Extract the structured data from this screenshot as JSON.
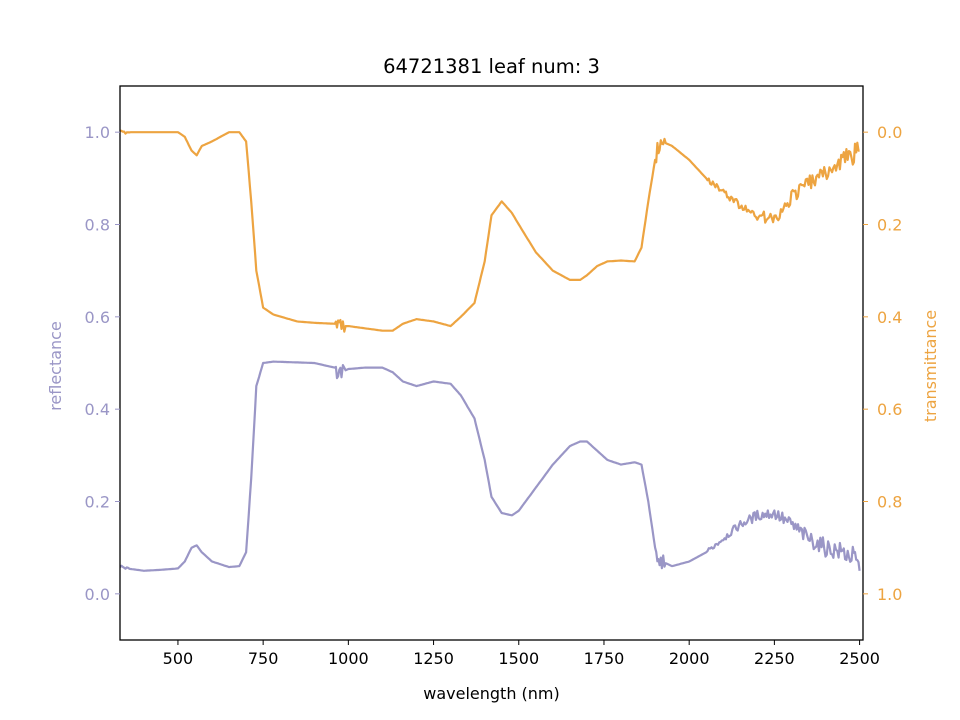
{
  "chart_data": {
    "type": "line",
    "title": "64721381 leaf num: 3",
    "xlabel": "wavelength (nm)",
    "xlim": [
      330,
      2510
    ],
    "x_ticks": [
      500,
      750,
      1000,
      1250,
      1500,
      1750,
      2000,
      2250,
      2500
    ],
    "y_left": {
      "label": "reflectance",
      "lim": [
        -0.1,
        1.1
      ],
      "ticks": [
        0.0,
        0.2,
        0.4,
        0.6,
        0.8,
        1.0
      ],
      "color": "#9a96c6"
    },
    "y_right": {
      "label": "transmittance",
      "lim": [
        1.1,
        -0.1
      ],
      "inverted": true,
      "ticks": [
        0.0,
        0.2,
        0.4,
        0.6,
        0.8,
        1.0
      ],
      "color": "#eda441"
    },
    "series": [
      {
        "axis": "left",
        "color": "#9a96c6",
        "x": [
          330,
          350,
          400,
          450,
          500,
          520,
          540,
          555,
          570,
          600,
          650,
          680,
          700,
          715,
          730,
          750,
          780,
          900,
          960,
          970,
          980,
          1000,
          1050,
          1100,
          1130,
          1160,
          1200,
          1250,
          1300,
          1330,
          1370,
          1400,
          1420,
          1450,
          1480,
          1500,
          1550,
          1600,
          1650,
          1680,
          1700,
          1730,
          1760,
          1800,
          1840,
          1860,
          1880,
          1900,
          1910,
          1920,
          1950,
          2000,
          2050,
          2100,
          2150,
          2200,
          2250,
          2300,
          2350,
          2400,
          2450,
          2480,
          2490,
          2500
        ],
        "y": [
          0.06,
          0.055,
          0.05,
          0.052,
          0.055,
          0.07,
          0.1,
          0.105,
          0.09,
          0.07,
          0.058,
          0.06,
          0.09,
          0.25,
          0.45,
          0.5,
          0.503,
          0.5,
          0.49,
          0.47,
          0.48,
          0.487,
          0.49,
          0.49,
          0.48,
          0.46,
          0.45,
          0.46,
          0.455,
          0.43,
          0.38,
          0.29,
          0.21,
          0.175,
          0.17,
          0.18,
          0.23,
          0.28,
          0.32,
          0.33,
          0.33,
          0.31,
          0.29,
          0.28,
          0.285,
          0.28,
          0.2,
          0.1,
          0.065,
          0.07,
          0.06,
          0.07,
          0.09,
          0.12,
          0.15,
          0.17,
          0.175,
          0.15,
          0.12,
          0.1,
          0.09,
          0.08,
          0.07,
          0.05
        ]
      },
      {
        "axis": "right",
        "color": "#eda441",
        "x": [
          330,
          350,
          400,
          450,
          500,
          520,
          540,
          555,
          570,
          600,
          650,
          680,
          700,
          715,
          730,
          750,
          780,
          850,
          900,
          960,
          970,
          980,
          1000,
          1050,
          1100,
          1130,
          1160,
          1200,
          1250,
          1300,
          1330,
          1370,
          1400,
          1420,
          1450,
          1480,
          1500,
          1550,
          1600,
          1650,
          1680,
          1700,
          1730,
          1760,
          1800,
          1840,
          1860,
          1880,
          1900,
          1910,
          1920,
          1950,
          2000,
          2050,
          2100,
          2150,
          2200,
          2250,
          2300,
          2350,
          2400,
          2450,
          2480,
          2490,
          2500
        ],
        "y": [
          0.0,
          0.0,
          0.0,
          0.0,
          0.0,
          0.01,
          0.04,
          0.05,
          0.03,
          0.02,
          0.0,
          0.0,
          0.02,
          0.15,
          0.3,
          0.38,
          0.395,
          0.41,
          0.413,
          0.415,
          0.41,
          0.42,
          0.42,
          0.425,
          0.43,
          0.43,
          0.415,
          0.405,
          0.41,
          0.42,
          0.4,
          0.37,
          0.28,
          0.18,
          0.15,
          0.175,
          0.2,
          0.26,
          0.3,
          0.32,
          0.32,
          0.31,
          0.29,
          0.28,
          0.278,
          0.28,
          0.25,
          0.15,
          0.06,
          0.03,
          0.02,
          0.03,
          0.06,
          0.1,
          0.13,
          0.16,
          0.18,
          0.19,
          0.14,
          0.11,
          0.09,
          0.06,
          0.05,
          0.04,
          0.04
        ]
      }
    ]
  }
}
